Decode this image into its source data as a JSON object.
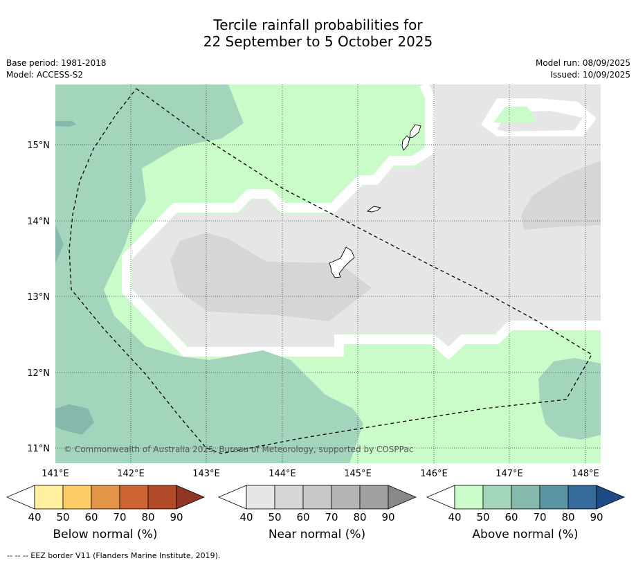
{
  "title_line1": "Tercile rainfall probabilities for",
  "title_line2": "22 September to 5 October 2025",
  "meta": {
    "base_period": "Base period: 1981-2018",
    "model": "Model: ACCESS-S2",
    "model_run": "Model run: 08/09/2025",
    "issued": "Issued: 10/09/2025"
  },
  "map": {
    "lat_labels": [
      "15°N",
      "14°N",
      "13°N",
      "12°N",
      "11°N"
    ],
    "lon_labels": [
      "141°E",
      "142°E",
      "143°E",
      "144°E",
      "145°E",
      "146°E",
      "147°E",
      "148°E"
    ],
    "copyright": "© Commonwealth of Australia 2025, Bureau of Meteorology, supported by COSPPac"
  },
  "colorbars": [
    {
      "name": "below",
      "title": "Below normal (%)",
      "ticks": [
        "40",
        "50",
        "60",
        "70",
        "80",
        "90"
      ],
      "colors": [
        "#fff0a0",
        "#fdcc66",
        "#e39446",
        "#cd6434",
        "#b04a28",
        "#8f3722"
      ]
    },
    {
      "name": "near",
      "title": "Near normal (%)",
      "ticks": [
        "40",
        "50",
        "60",
        "70",
        "80",
        "90"
      ],
      "colors": [
        "#e6e6e6",
        "#d6d6d6",
        "#c8c8c8",
        "#b4b4b4",
        "#a0a0a0",
        "#888888"
      ]
    },
    {
      "name": "above",
      "title": "Above normal (%)",
      "ticks": [
        "40",
        "50",
        "60",
        "70",
        "80",
        "90"
      ],
      "colors": [
        "#c9fcc8",
        "#a2d5bb",
        "#86b8ab",
        "#5b95a3",
        "#366a9a",
        "#1e4a86"
      ]
    }
  ],
  "footnote": "-- -- -- EEZ border V11 (Flanders Marine Institute, 2019)."
}
